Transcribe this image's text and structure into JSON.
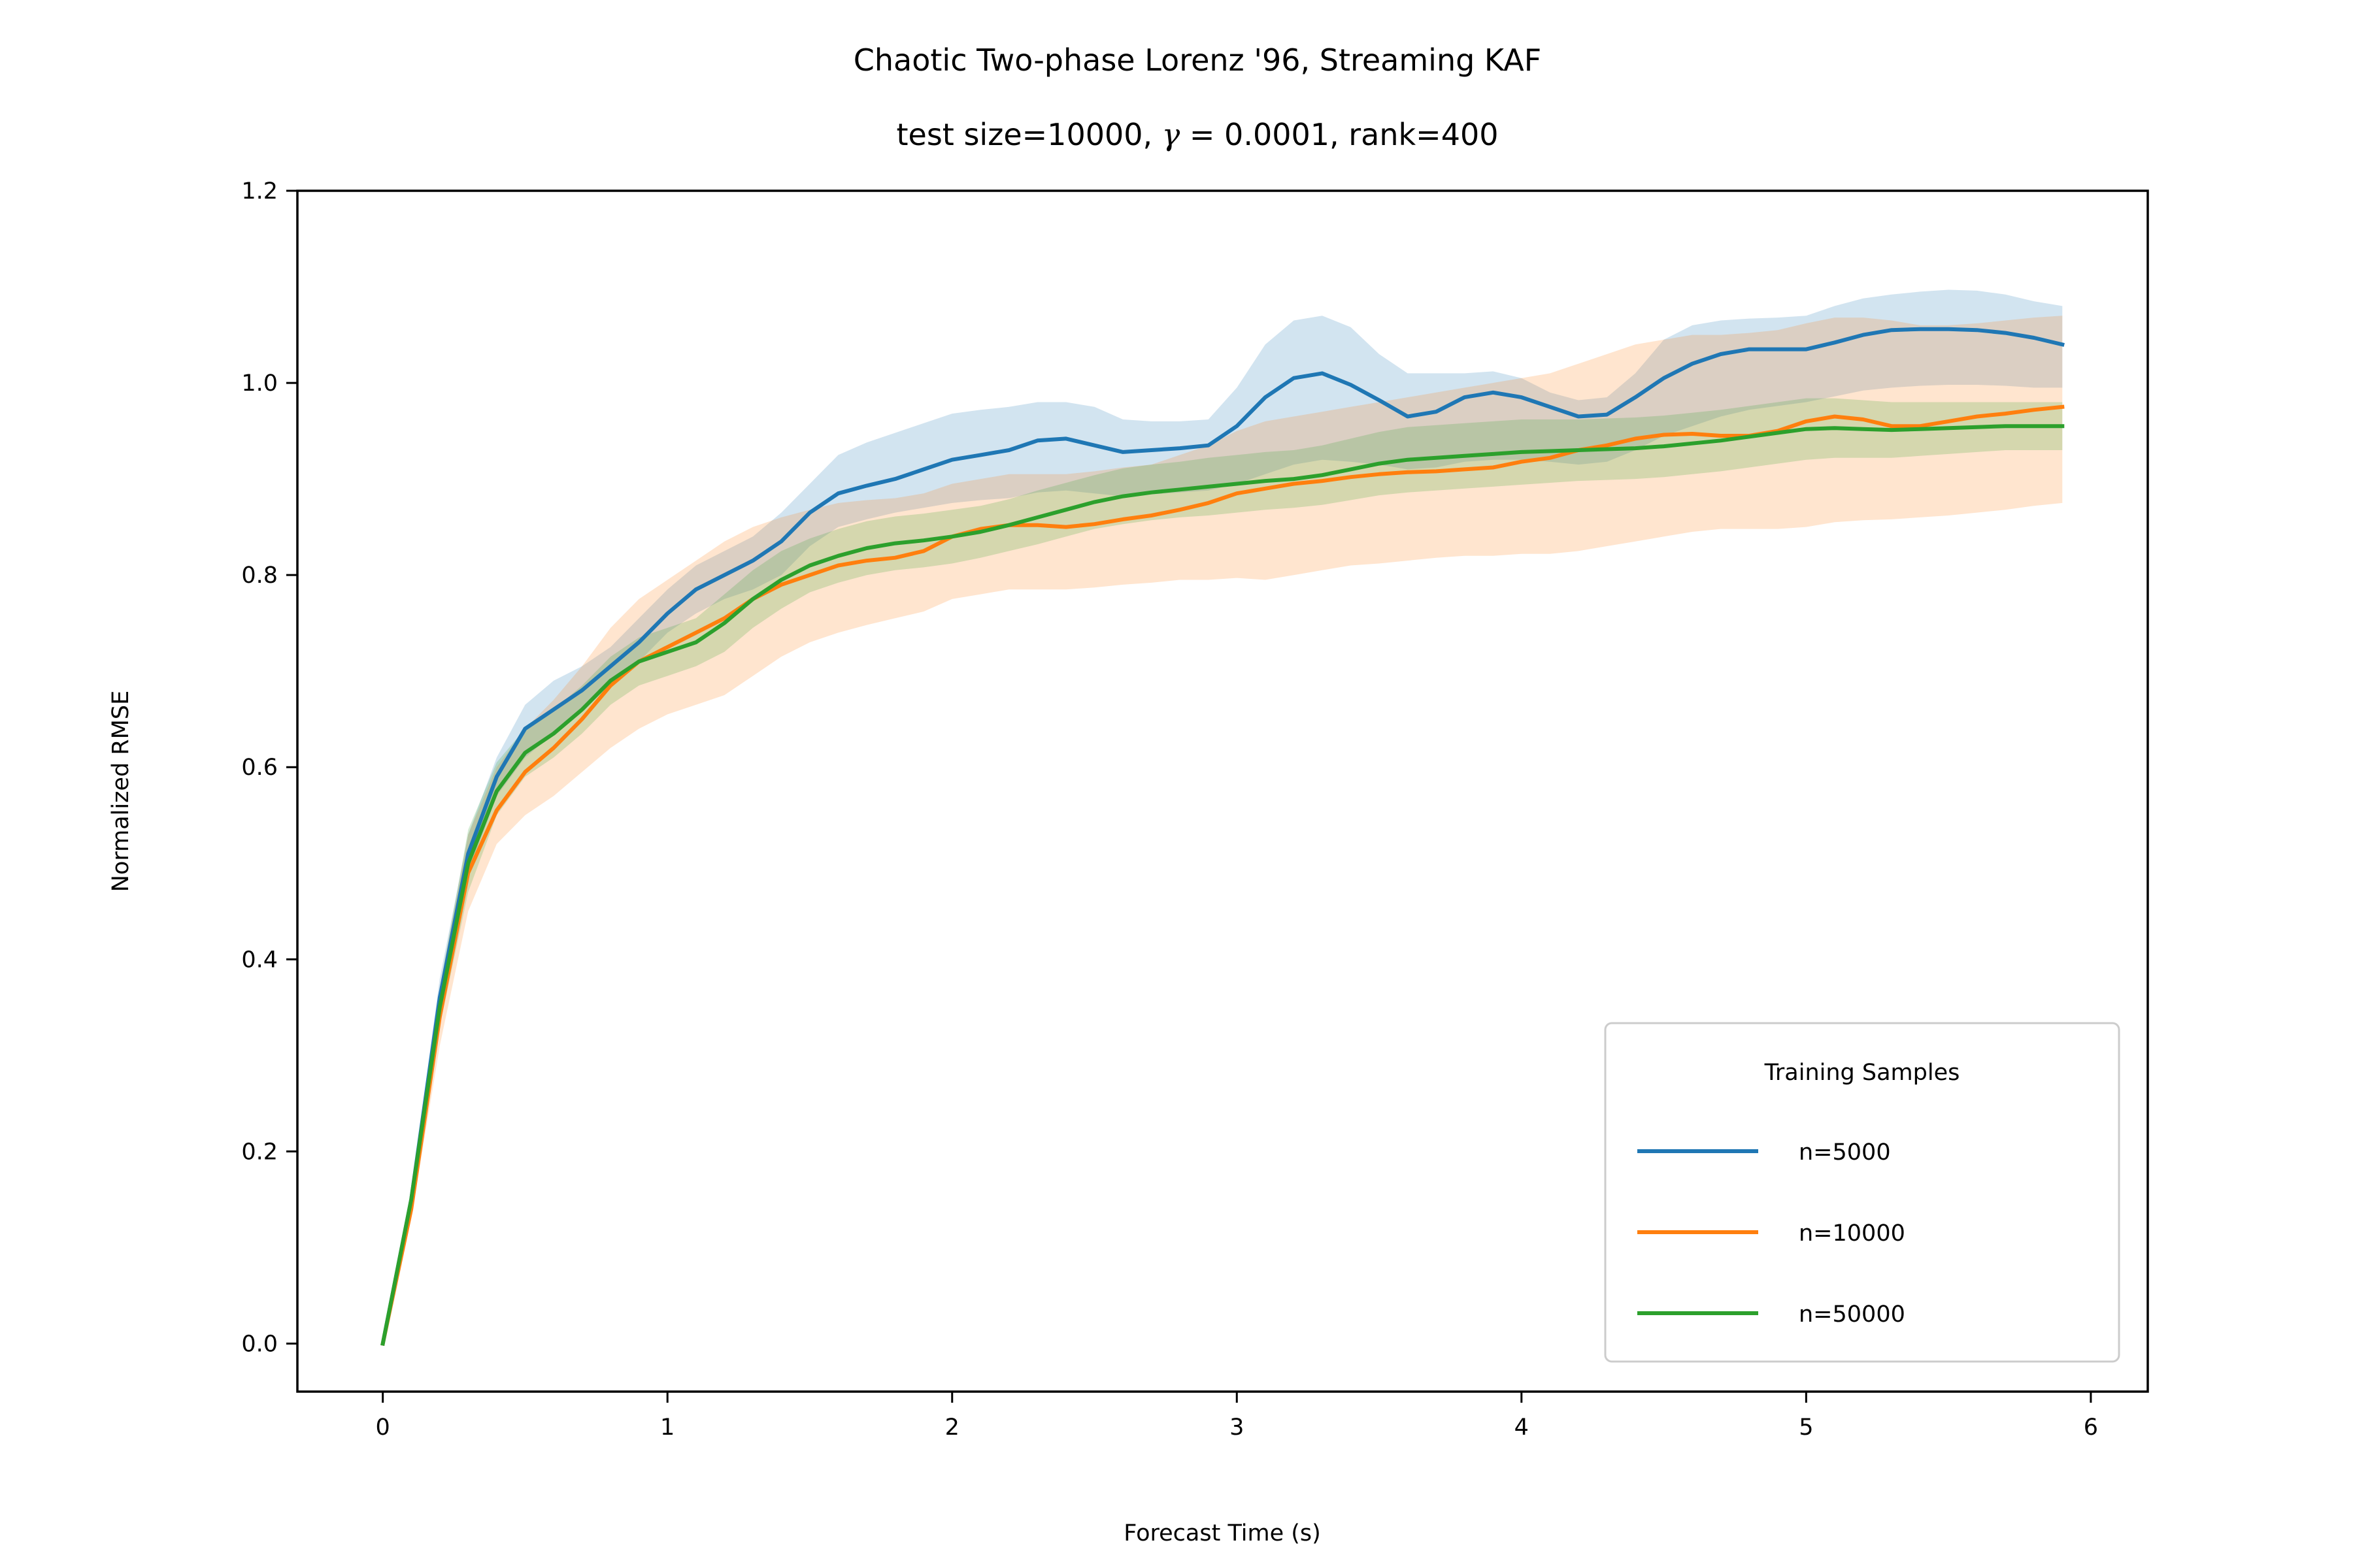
{
  "chart_data": {
    "type": "line",
    "title_line1": "Chaotic Two-phase Lorenz '96, Streaming KAF",
    "title_line2_prefix": "test size=10000, ",
    "title_line2_gamma_symbol": "γ",
    "title_line2_suffix": " = 0.0001, rank=400",
    "xlabel": "Forecast Time (s)",
    "ylabel": "Normalized RMSE",
    "xlim": [
      -0.3,
      6.2
    ],
    "ylim": [
      -0.05,
      1.2
    ],
    "xticks": [
      0,
      1,
      2,
      3,
      4,
      5,
      6
    ],
    "xtick_labels": [
      "0",
      "1",
      "2",
      "3",
      "4",
      "5",
      "6"
    ],
    "yticks": [
      0.0,
      0.2,
      0.4,
      0.6,
      0.8,
      1.0,
      1.2
    ],
    "ytick_labels": [
      "0.0",
      "0.2",
      "0.4",
      "0.6",
      "0.8",
      "1.0",
      "1.2"
    ],
    "grid": false,
    "legend_title": "Training Samples",
    "legend_position": "lower-right",
    "x": [
      0,
      0.1,
      0.2,
      0.3,
      0.4,
      0.5,
      0.6,
      0.7,
      0.8,
      0.9,
      1.0,
      1.1,
      1.2,
      1.3,
      1.4,
      1.5,
      1.6,
      1.7,
      1.8,
      1.9,
      2.0,
      2.1,
      2.2,
      2.3,
      2.4,
      2.5,
      2.6,
      2.7,
      2.8,
      2.9,
      3.0,
      3.1,
      3.2,
      3.3,
      3.4,
      3.5,
      3.6,
      3.7,
      3.8,
      3.9,
      4.0,
      4.1,
      4.2,
      4.3,
      4.4,
      4.5,
      4.6,
      4.7,
      4.8,
      4.9,
      5.0,
      5.1,
      5.2,
      5.3,
      5.4,
      5.5,
      5.6,
      5.7,
      5.8,
      5.9
    ],
    "series": [
      {
        "name": "n=5000",
        "color": "#1f77b4",
        "values": [
          0.0,
          0.15,
          0.36,
          0.51,
          0.59,
          0.64,
          0.66,
          0.68,
          0.705,
          0.73,
          0.76,
          0.785,
          0.8,
          0.815,
          0.835,
          0.865,
          0.885,
          0.893,
          0.9,
          0.91,
          0.92,
          0.925,
          0.93,
          0.94,
          0.942,
          0.935,
          0.928,
          0.93,
          0.932,
          0.935,
          0.955,
          0.985,
          1.005,
          1.01,
          0.998,
          0.982,
          0.965,
          0.97,
          0.985,
          0.99,
          0.985,
          0.975,
          0.965,
          0.967,
          0.985,
          1.005,
          1.02,
          1.03,
          1.035,
          1.035,
          1.035,
          1.042,
          1.05,
          1.055,
          1.056,
          1.056,
          1.055,
          1.052,
          1.047,
          1.04
        ],
        "lower": [
          0.0,
          0.14,
          0.34,
          0.49,
          0.57,
          0.61,
          0.635,
          0.66,
          0.685,
          0.71,
          0.74,
          0.76,
          0.775,
          0.785,
          0.8,
          0.83,
          0.85,
          0.858,
          0.865,
          0.87,
          0.875,
          0.878,
          0.88,
          0.886,
          0.888,
          0.885,
          0.882,
          0.884,
          0.886,
          0.888,
          0.895,
          0.905,
          0.915,
          0.92,
          0.918,
          0.915,
          0.91,
          0.912,
          0.918,
          0.92,
          0.92,
          0.918,
          0.915,
          0.918,
          0.93,
          0.945,
          0.955,
          0.965,
          0.972,
          0.976,
          0.98,
          0.986,
          0.992,
          0.995,
          0.997,
          0.998,
          0.998,
          0.997,
          0.995,
          0.995
        ],
        "upper": [
          0.0,
          0.16,
          0.38,
          0.53,
          0.61,
          0.665,
          0.69,
          0.705,
          0.725,
          0.755,
          0.785,
          0.81,
          0.825,
          0.84,
          0.865,
          0.895,
          0.925,
          0.938,
          0.948,
          0.958,
          0.968,
          0.972,
          0.975,
          0.98,
          0.98,
          0.975,
          0.962,
          0.96,
          0.96,
          0.962,
          0.995,
          1.04,
          1.065,
          1.07,
          1.058,
          1.03,
          1.01,
          1.01,
          1.01,
          1.012,
          1.005,
          0.99,
          0.982,
          0.985,
          1.01,
          1.045,
          1.06,
          1.065,
          1.067,
          1.068,
          1.07,
          1.08,
          1.088,
          1.092,
          1.095,
          1.097,
          1.096,
          1.092,
          1.085,
          1.08
        ]
      },
      {
        "name": "n=10000",
        "color": "#ff7f0e",
        "values": [
          0.0,
          0.14,
          0.34,
          0.49,
          0.555,
          0.595,
          0.62,
          0.65,
          0.685,
          0.71,
          0.725,
          0.74,
          0.755,
          0.775,
          0.79,
          0.8,
          0.81,
          0.815,
          0.818,
          0.825,
          0.84,
          0.848,
          0.852,
          0.852,
          0.85,
          0.853,
          0.858,
          0.862,
          0.868,
          0.875,
          0.885,
          0.89,
          0.895,
          0.898,
          0.902,
          0.905,
          0.907,
          0.908,
          0.91,
          0.912,
          0.918,
          0.922,
          0.93,
          0.935,
          0.942,
          0.946,
          0.947,
          0.945,
          0.945,
          0.95,
          0.96,
          0.965,
          0.962,
          0.955,
          0.955,
          0.96,
          0.965,
          0.968,
          0.972,
          0.975
        ],
        "lower": [
          0.0,
          0.13,
          0.31,
          0.45,
          0.52,
          0.55,
          0.57,
          0.595,
          0.62,
          0.64,
          0.655,
          0.665,
          0.675,
          0.695,
          0.715,
          0.73,
          0.74,
          0.748,
          0.755,
          0.762,
          0.775,
          0.78,
          0.785,
          0.785,
          0.785,
          0.787,
          0.79,
          0.792,
          0.795,
          0.795,
          0.797,
          0.795,
          0.8,
          0.805,
          0.81,
          0.812,
          0.815,
          0.818,
          0.82,
          0.82,
          0.822,
          0.822,
          0.825,
          0.83,
          0.835,
          0.84,
          0.845,
          0.848,
          0.848,
          0.848,
          0.85,
          0.855,
          0.857,
          0.858,
          0.86,
          0.862,
          0.865,
          0.868,
          0.872,
          0.875
        ],
        "upper": [
          0.0,
          0.15,
          0.37,
          0.53,
          0.6,
          0.64,
          0.67,
          0.705,
          0.745,
          0.775,
          0.795,
          0.815,
          0.835,
          0.85,
          0.86,
          0.868,
          0.875,
          0.878,
          0.88,
          0.885,
          0.895,
          0.9,
          0.905,
          0.905,
          0.905,
          0.908,
          0.912,
          0.915,
          0.925,
          0.935,
          0.95,
          0.96,
          0.965,
          0.97,
          0.975,
          0.98,
          0.985,
          0.99,
          0.995,
          1.0,
          1.005,
          1.01,
          1.02,
          1.03,
          1.04,
          1.045,
          1.05,
          1.05,
          1.052,
          1.055,
          1.062,
          1.068,
          1.068,
          1.065,
          1.06,
          1.06,
          1.062,
          1.065,
          1.068,
          1.07
        ]
      },
      {
        "name": "n=50000",
        "color": "#2ca02c",
        "values": [
          0.0,
          0.15,
          0.35,
          0.5,
          0.575,
          0.615,
          0.635,
          0.66,
          0.69,
          0.71,
          0.72,
          0.73,
          0.75,
          0.775,
          0.795,
          0.81,
          0.82,
          0.828,
          0.833,
          0.836,
          0.84,
          0.845,
          0.852,
          0.86,
          0.868,
          0.876,
          0.882,
          0.886,
          0.889,
          0.892,
          0.895,
          0.898,
          0.9,
          0.904,
          0.91,
          0.916,
          0.92,
          0.922,
          0.924,
          0.926,
          0.928,
          0.929,
          0.93,
          0.931,
          0.932,
          0.934,
          0.937,
          0.94,
          0.944,
          0.948,
          0.952,
          0.953,
          0.952,
          0.951,
          0.952,
          0.953,
          0.954,
          0.955,
          0.955,
          0.955
        ],
        "lower": [
          0.0,
          0.14,
          0.33,
          0.47,
          0.55,
          0.59,
          0.61,
          0.635,
          0.665,
          0.685,
          0.695,
          0.705,
          0.72,
          0.745,
          0.765,
          0.782,
          0.792,
          0.8,
          0.805,
          0.808,
          0.812,
          0.818,
          0.825,
          0.832,
          0.84,
          0.848,
          0.853,
          0.857,
          0.86,
          0.862,
          0.865,
          0.868,
          0.87,
          0.873,
          0.878,
          0.883,
          0.886,
          0.888,
          0.89,
          0.892,
          0.894,
          0.896,
          0.898,
          0.899,
          0.9,
          0.902,
          0.905,
          0.908,
          0.912,
          0.916,
          0.92,
          0.922,
          0.922,
          0.922,
          0.924,
          0.926,
          0.928,
          0.93,
          0.93,
          0.93
        ],
        "upper": [
          0.0,
          0.16,
          0.37,
          0.535,
          0.605,
          0.64,
          0.66,
          0.685,
          0.715,
          0.735,
          0.745,
          0.755,
          0.78,
          0.805,
          0.825,
          0.838,
          0.848,
          0.856,
          0.861,
          0.864,
          0.868,
          0.872,
          0.879,
          0.888,
          0.896,
          0.904,
          0.911,
          0.915,
          0.918,
          0.922,
          0.925,
          0.928,
          0.93,
          0.935,
          0.942,
          0.949,
          0.954,
          0.956,
          0.958,
          0.96,
          0.962,
          0.962,
          0.962,
          0.963,
          0.964,
          0.966,
          0.969,
          0.972,
          0.976,
          0.98,
          0.984,
          0.984,
          0.982,
          0.98,
          0.98,
          0.98,
          0.98,
          0.98,
          0.98,
          0.98
        ]
      }
    ]
  }
}
